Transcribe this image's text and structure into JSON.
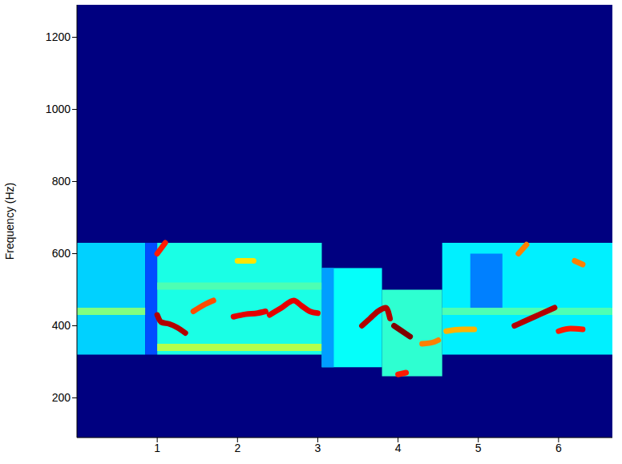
{
  "chart_data": {
    "type": "heatmap",
    "ylabel": "Frequency (Hz)",
    "xlim": [
      0,
      6.67
    ],
    "ylim": [
      90,
      1290
    ],
    "xticks": [
      1,
      2,
      3,
      4,
      5,
      6
    ],
    "yticks": [
      200,
      400,
      600,
      800,
      1000,
      1200
    ],
    "cells": [
      {
        "x": [
          0,
          0.85
        ],
        "y": [
          320,
          630
        ],
        "value": 0.33
      },
      {
        "x": [
          0.85,
          1.0
        ],
        "y": [
          320,
          630
        ],
        "value": 0.2
      },
      {
        "x": [
          0,
          0.85
        ],
        "y": [
          430,
          450
        ],
        "value": 0.5
      },
      {
        "x": [
          1.0,
          3.05
        ],
        "y": [
          320,
          630
        ],
        "value": 0.4
      },
      {
        "x": [
          1.0,
          3.05
        ],
        "y": [
          330,
          350
        ],
        "value": 0.55
      },
      {
        "x": [
          1.0,
          3.05
        ],
        "y": [
          500,
          520
        ],
        "value": 0.45
      },
      {
        "x": [
          3.05,
          3.8
        ],
        "y": [
          285,
          560
        ],
        "value": 0.38
      },
      {
        "x": [
          3.05,
          3.2
        ],
        "y": [
          285,
          560
        ],
        "value": 0.28
      },
      {
        "x": [
          3.8,
          4.55
        ],
        "y": [
          260,
          500
        ],
        "value": 0.42
      },
      {
        "x": [
          4.55,
          6.67
        ],
        "y": [
          320,
          630
        ],
        "value": 0.36
      },
      {
        "x": [
          4.9,
          5.3
        ],
        "y": [
          450,
          600
        ],
        "value": 0.25
      },
      {
        "x": [
          4.55,
          6.67
        ],
        "y": [
          430,
          450
        ],
        "value": 0.45
      }
    ],
    "tracks": [
      {
        "x": [
          1.0,
          1.05,
          1.15,
          1.25,
          1.35
        ],
        "y": [
          430,
          410,
          405,
          395,
          380
        ],
        "value": 0.95
      },
      {
        "x": [
          1.45,
          1.6,
          1.7
        ],
        "y": [
          440,
          460,
          470
        ],
        "value": 0.8
      },
      {
        "x": [
          1.95,
          2.1,
          2.25,
          2.35
        ],
        "y": [
          425,
          432,
          435,
          440
        ],
        "value": 0.9
      },
      {
        "x": [
          2.4,
          2.55,
          2.7,
          2.8,
          2.9,
          3.0
        ],
        "y": [
          430,
          450,
          470,
          455,
          440,
          435
        ],
        "value": 0.9
      },
      {
        "x": [
          3.55,
          3.65,
          3.75,
          3.85,
          3.9
        ],
        "y": [
          400,
          420,
          440,
          450,
          420
        ],
        "value": 0.95
      },
      {
        "x": [
          3.95,
          4.05,
          4.15
        ],
        "y": [
          400,
          385,
          370
        ],
        "value": 1.0
      },
      {
        "x": [
          4.3,
          4.45,
          4.5
        ],
        "y": [
          350,
          355,
          360
        ],
        "value": 0.75
      },
      {
        "x": [
          4.0,
          4.1
        ],
        "y": [
          265,
          270
        ],
        "value": 0.85
      },
      {
        "x": [
          4.6,
          4.8,
          4.95
        ],
        "y": [
          385,
          390,
          390
        ],
        "value": 0.7
      },
      {
        "x": [
          5.45,
          5.55,
          5.7,
          5.85,
          5.95
        ],
        "y": [
          400,
          410,
          425,
          440,
          450
        ],
        "value": 0.95
      },
      {
        "x": [
          6.0,
          6.15,
          6.3
        ],
        "y": [
          385,
          392,
          390
        ],
        "value": 0.85
      },
      {
        "x": [
          1.0,
          1.1
        ],
        "y": [
          600,
          630
        ],
        "value": 0.85
      },
      {
        "x": [
          5.5,
          5.6
        ],
        "y": [
          600,
          625
        ],
        "value": 0.75
      },
      {
        "x": [
          6.2,
          6.3
        ],
        "y": [
          580,
          570
        ],
        "value": 0.75
      },
      {
        "x": [
          2.0,
          2.2
        ],
        "y": [
          580,
          580
        ],
        "value": 0.65
      }
    ]
  }
}
